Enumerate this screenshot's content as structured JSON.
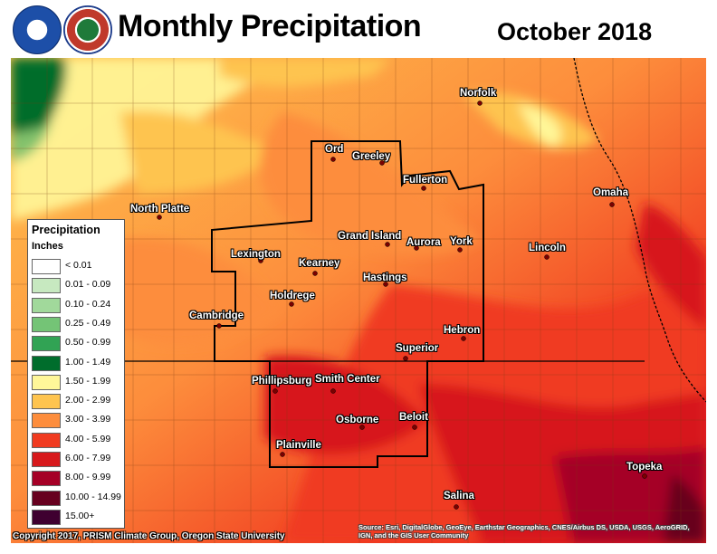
{
  "title": "Monthly Precipitation",
  "subtitle": "October 2018",
  "logos": [
    "noaa-logo",
    "nws-logo"
  ],
  "legend": {
    "title": "Precipitation",
    "units": "Inches",
    "items": [
      {
        "label": "< 0.01",
        "color": "#ffffff"
      },
      {
        "label": "0.01 - 0.09",
        "color": "#c7e9c0"
      },
      {
        "label": "0.10 - 0.24",
        "color": "#a1d99b"
      },
      {
        "label": "0.25 - 0.49",
        "color": "#74c476"
      },
      {
        "label": "0.50 - 0.99",
        "color": "#31a354"
      },
      {
        "label": "1.00 - 1.49",
        "color": "#006d2c"
      },
      {
        "label": "1.50 - 1.99",
        "color": "#fff799"
      },
      {
        "label": "2.00 - 2.99",
        "color": "#fec44f"
      },
      {
        "label": "3.00 - 3.99",
        "color": "#fd8d3c"
      },
      {
        "label": "4.00 - 5.99",
        "color": "#f03b20"
      },
      {
        "label": "6.00 - 7.99",
        "color": "#d7191c"
      },
      {
        "label": "8.00 - 9.99",
        "color": "#a50026"
      },
      {
        "label": "10.00 - 14.99",
        "color": "#67001f"
      },
      {
        "label": "15.00+",
        "color": "#3f0030"
      }
    ]
  },
  "cities": [
    {
      "name": "Norfolk"
    },
    {
      "name": "Ord"
    },
    {
      "name": "Greeley"
    },
    {
      "name": "Fullerton"
    },
    {
      "name": "Omaha"
    },
    {
      "name": "North Platte"
    },
    {
      "name": "Grand Island"
    },
    {
      "name": "Aurora"
    },
    {
      "name": "York"
    },
    {
      "name": "Lincoln"
    },
    {
      "name": "Lexington"
    },
    {
      "name": "Kearney"
    },
    {
      "name": "Hastings"
    },
    {
      "name": "Holdrege"
    },
    {
      "name": "Cambridge"
    },
    {
      "name": "Hebron"
    },
    {
      "name": "Superior"
    },
    {
      "name": "Phillipsburg"
    },
    {
      "name": "Smith Center"
    },
    {
      "name": "Osborne"
    },
    {
      "name": "Beloit"
    },
    {
      "name": "Plainville"
    },
    {
      "name": "Topeka"
    },
    {
      "name": "Salina"
    }
  ],
  "copyright": "Copyright 2017, PRISM Climate Group, Oregon State University",
  "source": "Source: Esri, DigitalGlobe, GeoEye, Earthstar Geographics, CNES/Airbus DS, USDA, USGS, AeroGRID, IGN, and the GIS User Community"
}
